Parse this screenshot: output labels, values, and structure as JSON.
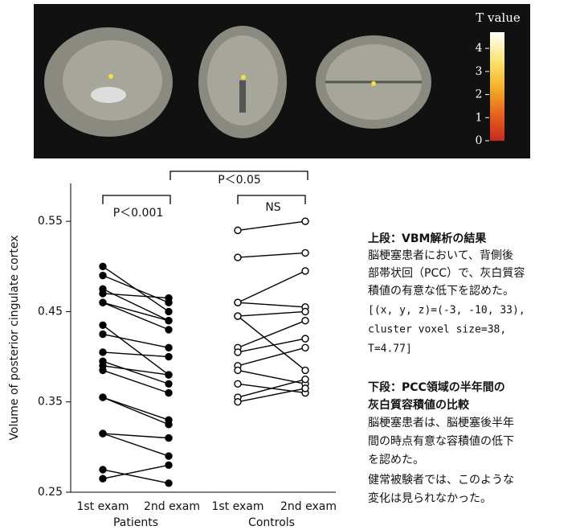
{
  "brain_panel": {
    "colorbar": {
      "title": "T value",
      "clim": [
        0,
        4.7
      ],
      "ticks": [
        0,
        1,
        2,
        3,
        4
      ],
      "colors": [
        "#c8281e",
        "#e8641e",
        "#f5b428",
        "#fae678",
        "#ffffff"
      ]
    }
  },
  "chart_data": {
    "type": "paired-line",
    "y_label": "Volume of posterior cingulate cortex",
    "categories": [
      "1st exam",
      "2nd exam"
    ],
    "ylim": [
      0.25,
      0.592
    ],
    "yticks": [
      0.25,
      0.35,
      0.45,
      0.55
    ],
    "series": [
      {
        "name": "Patients",
        "color": "#000000",
        "marker_fill": "#000000",
        "first": [
          0.5,
          0.49,
          0.475,
          0.47,
          0.46,
          0.46,
          0.435,
          0.425,
          0.405,
          0.395,
          0.39,
          0.385,
          0.355,
          0.355,
          0.315,
          0.315,
          0.275,
          0.265
        ],
        "second": [
          0.45,
          0.46,
          0.44,
          0.465,
          0.43,
          0.44,
          0.38,
          0.41,
          0.4,
          0.37,
          0.38,
          0.36,
          0.33,
          0.325,
          0.31,
          0.29,
          0.26,
          0.28
        ]
      },
      {
        "name": "Controls",
        "color": "#000000",
        "marker_fill": "#ffffff",
        "first": [
          0.54,
          0.51,
          0.46,
          0.46,
          0.445,
          0.445,
          0.41,
          0.405,
          0.39,
          0.385,
          0.37,
          0.355,
          0.35
        ],
        "second": [
          0.55,
          0.515,
          0.495,
          0.455,
          0.45,
          0.385,
          0.44,
          0.42,
          0.41,
          0.37,
          0.36,
          0.375,
          0.365
        ]
      }
    ],
    "annotations": [
      "P＜0.001",
      "P＜0.05",
      "NS"
    ]
  },
  "notes": {
    "upper": {
      "heading": "上段：VBM解析の結果",
      "lines": [
        "脳梗塞患者において、背側後",
        "部帯状回（PCC）で、灰白質容",
        "積値の有意な低下を認めた。",
        " [(x, y, z)=(-3, -10, 33),",
        "cluster voxel size=38,",
        "T=4.77]"
      ]
    },
    "lower": {
      "heading": [
        "下段：PCC領域の半年間の",
        "灰白質容積値の比較"
      ],
      "lines": [
        "脳梗塞患者は、脳梗塞後半年",
        "間の時点有意な容積値の低下",
        "を認めた。",
        "健常被験者では、このような",
        "変化は見られなかった。"
      ]
    }
  }
}
